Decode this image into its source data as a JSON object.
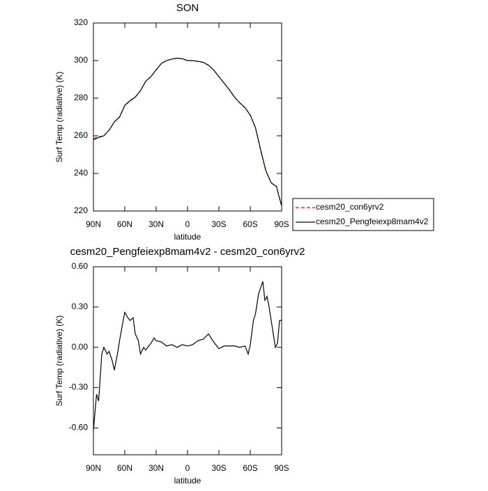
{
  "chart_data": [
    {
      "type": "line",
      "title": "SON",
      "xlabel": "latitude",
      "ylabel": "Surf Temp (radiative) (K)",
      "x": [
        90,
        85,
        80,
        75,
        70,
        65,
        60,
        55,
        50,
        45,
        40,
        35,
        30,
        25,
        20,
        15,
        10,
        5,
        0,
        -5,
        -10,
        -15,
        -20,
        -25,
        -30,
        -35,
        -40,
        -45,
        -50,
        -55,
        -60,
        -65,
        -70,
        -75,
        -80,
        -85,
        -90
      ],
      "xlim": [
        90,
        -90
      ],
      "xticks": [
        {
          "value": 90,
          "label": "90N"
        },
        {
          "value": 60,
          "label": "60N"
        },
        {
          "value": 30,
          "label": "30N"
        },
        0,
        {
          "value": -30,
          "label": "30S"
        },
        {
          "value": -60,
          "label": "60S"
        },
        {
          "value": -90,
          "label": "90S"
        }
      ],
      "ylim": [
        220,
        320
      ],
      "yticks": [
        220,
        240,
        260,
        280,
        300,
        320
      ],
      "legend": "right",
      "series": [
        {
          "name": "cesm20_con6yrv2",
          "color": "#ff0000",
          "dash": true,
          "values": [
            258.5,
            259.5,
            260,
            263,
            267.5,
            270,
            276,
            278.5,
            280.5,
            284,
            289,
            291.5,
            295,
            298.5,
            300,
            300.8,
            301.3,
            301,
            300,
            300,
            299.5,
            299,
            297.5,
            295,
            291.5,
            288,
            284.5,
            280.5,
            277.5,
            275,
            271,
            264,
            252,
            241,
            235,
            233,
            222.5
          ]
        },
        {
          "name": "cesm20_Pengfeiexp8mam4v2",
          "color": "#000000",
          "dash": false,
          "values": [
            257.9,
            259.1,
            260,
            263,
            267.4,
            270,
            276.2,
            278.7,
            280.6,
            284,
            289,
            291.5,
            295.1,
            298.5,
            300,
            300.8,
            301.3,
            301,
            300,
            300,
            299.6,
            299.1,
            297.6,
            295,
            291.5,
            288,
            284.5,
            280.5,
            277.5,
            275,
            271,
            264.3,
            252.4,
            241.3,
            235,
            233,
            222.7
          ]
        }
      ]
    },
    {
      "type": "line",
      "title": "cesm20_Pengfeiexp8mam4v2 - cesm20_con6yrv2",
      "xlabel": "latitude",
      "ylabel": "Surf Temp (radiative) (K)",
      "x": [
        90,
        87,
        85,
        82,
        80,
        77,
        75,
        72,
        70,
        67,
        65,
        62,
        60,
        57,
        55,
        52,
        50,
        47,
        45,
        42,
        40,
        35,
        32,
        30,
        25,
        20,
        15,
        10,
        5,
        0,
        -5,
        -10,
        -15,
        -20,
        -25,
        -30,
        -35,
        -40,
        -45,
        -50,
        -55,
        -58,
        -60,
        -63,
        -65,
        -68,
        -72,
        -74,
        -76,
        -78,
        -81,
        -84,
        -86,
        -88,
        -90
      ],
      "xlim": [
        90,
        -90
      ],
      "xticks": [
        {
          "value": 90,
          "label": "90N"
        },
        {
          "value": 60,
          "label": "60N"
        },
        {
          "value": 30,
          "label": "30N"
        },
        0,
        {
          "value": -30,
          "label": "30S"
        },
        {
          "value": -60,
          "label": "60S"
        },
        {
          "value": -90,
          "label": "90S"
        }
      ],
      "ylim": [
        -0.8,
        0.6
      ],
      "yticks": [
        {
          "value": -0.6,
          "label": "-0.60"
        },
        {
          "value": -0.3,
          "label": "-0.30"
        },
        {
          "value": 0,
          "label": "0.00"
        },
        {
          "value": 0.3,
          "label": "0.30"
        },
        {
          "value": 0.6,
          "label": "0.60"
        }
      ],
      "series": [
        {
          "color": "#000000",
          "values": [
            -0.62,
            -0.35,
            -0.4,
            -0.05,
            0,
            -0.05,
            -0.03,
            -0.1,
            -0.17,
            -0.05,
            0.05,
            0.18,
            0.26,
            0.22,
            0.2,
            0.22,
            0.1,
            0.05,
            -0.05,
            0,
            -0.02,
            0.03,
            0.07,
            0.05,
            0.04,
            0.01,
            0.02,
            0,
            0.02,
            0.01,
            0.02,
            0.05,
            0.06,
            0.1,
            0.04,
            -0.01,
            0.01,
            0.01,
            0.01,
            0,
            0.01,
            -0.05,
            0.02,
            0.2,
            0.25,
            0.4,
            0.49,
            0.35,
            0.38,
            0.3,
            0.15,
            0,
            0.03,
            0.2,
            0.2
          ]
        }
      ]
    }
  ]
}
